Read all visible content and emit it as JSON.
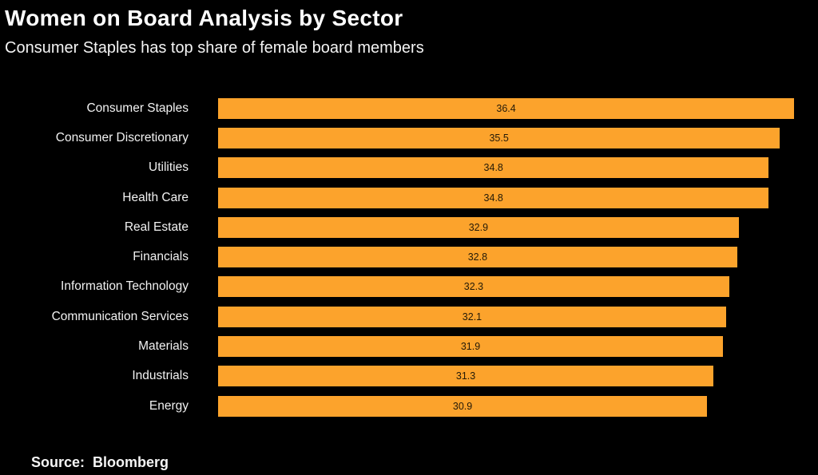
{
  "header": {
    "title": "Women on Board Analysis by Sector",
    "subtitle": "Consumer Staples has top share of female board members"
  },
  "footer": {
    "source_label": "Source:",
    "source_value": "Bloomberg"
  },
  "colors": {
    "background": "#000000",
    "bar": "#FCA32C",
    "title_text": "#FFFFFF",
    "category_text": "#F2F2F2",
    "value_text": "#241A08"
  },
  "chart_data": {
    "type": "bar",
    "orientation": "horizontal",
    "title": "Women on Board Analysis by Sector",
    "subtitle": "Consumer Staples has top share of female board members",
    "categories": [
      "Consumer Staples",
      "Consumer Discretionary",
      "Utilities",
      "Health Care",
      "Real Estate",
      "Financials",
      "Information Technology",
      "Communication Services",
      "Materials",
      "Industrials",
      "Energy"
    ],
    "values": [
      36.4,
      35.5,
      34.8,
      34.8,
      32.9,
      32.8,
      32.3,
      32.1,
      31.9,
      31.3,
      30.9
    ],
    "xlabel": "",
    "ylabel": "",
    "xlim": [
      0,
      37.2
    ],
    "value_labels": true,
    "value_label_position": "center",
    "grid": false,
    "legend": false,
    "source": "Bloomberg"
  }
}
